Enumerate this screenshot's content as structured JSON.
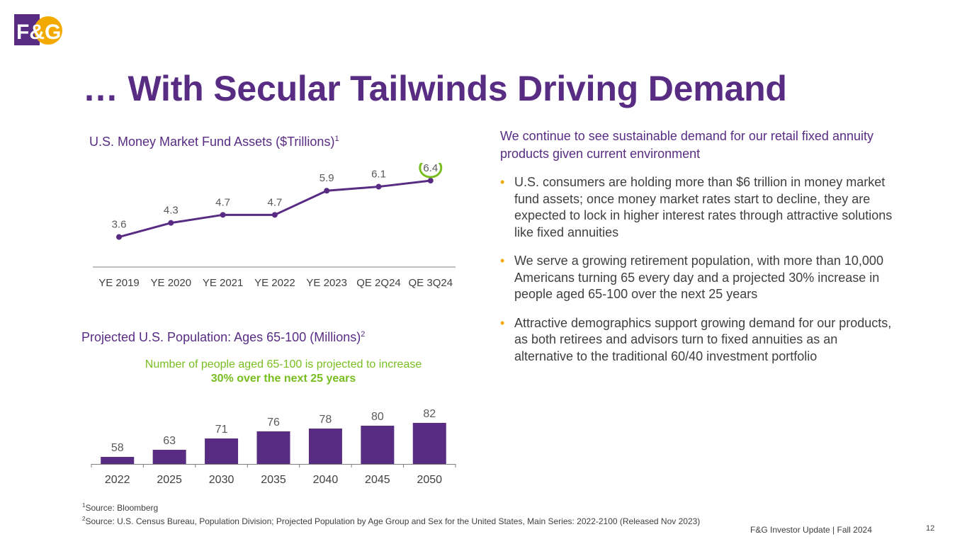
{
  "brand": {
    "logo_text": "F&G",
    "purple": "#582c83",
    "gold": "#f2a900",
    "green": "#78be20"
  },
  "slide": {
    "title": "… With Secular Tailwinds Driving Demand",
    "page_number": "12",
    "footer": "F&G Investor Update | Fall 2024"
  },
  "chart_data": [
    {
      "type": "line",
      "title": "U.S. Money Market Fund Assets ($Trillions)",
      "title_footnote": "1",
      "categories": [
        "YE 2019",
        "YE 2020",
        "YE 2021",
        "YE 2022",
        "YE 2023",
        "QE 2Q24",
        "QE 3Q24"
      ],
      "values": [
        3.6,
        4.3,
        4.7,
        4.7,
        5.9,
        6.1,
        6.4
      ],
      "labels": [
        "3.6",
        "4.3",
        "4.7",
        "4.7",
        "5.9",
        "6.1",
        "6.4"
      ],
      "highlight_index": 6,
      "ylim": [
        2.0,
        7.0
      ],
      "xlabel": "",
      "ylabel": ""
    },
    {
      "type": "bar",
      "title": "Projected U.S. Population: Ages 65-100 (Millions)",
      "title_footnote": "2",
      "categories": [
        "2022",
        "2025",
        "2030",
        "2035",
        "2040",
        "2045",
        "2050"
      ],
      "values": [
        58,
        63,
        71,
        76,
        78,
        80,
        82
      ],
      "labels": [
        "58",
        "63",
        "71",
        "76",
        "78",
        "80",
        "82"
      ],
      "ylim": [
        53,
        90
      ],
      "xlabel": "",
      "ylabel": "",
      "callout_line1": "Number of people aged 65-100 is projected to increase",
      "callout_line2": "30% over the next 25 years"
    }
  ],
  "right_panel": {
    "heading": "We continue to see sustainable demand for our retail fixed annuity products given current environment",
    "bullet_marker": "•",
    "bullets": [
      "U.S. consumers are holding more than $6 trillion in money market fund assets; once money market rates start to decline, they are expected to lock in higher interest rates through attractive solutions like fixed annuities",
      "We serve a growing retirement population, with more than 10,000 Americans turning 65 every day and a projected 30% increase in people aged 65-100 over the next 25 years",
      "Attractive demographics support growing demand for our products, as both retirees and advisors turn to fixed annuities as an alternative to the traditional 60/40 investment portfolio"
    ]
  },
  "footnotes": [
    {
      "num": "1",
      "text": "Source: Bloomberg"
    },
    {
      "num": "2",
      "text": "Source: U.S. Census Bureau, Population Division; Projected Population by Age Group and Sex for the United States, Main Series: 2022-2100 (Released Nov 2023)"
    }
  ]
}
